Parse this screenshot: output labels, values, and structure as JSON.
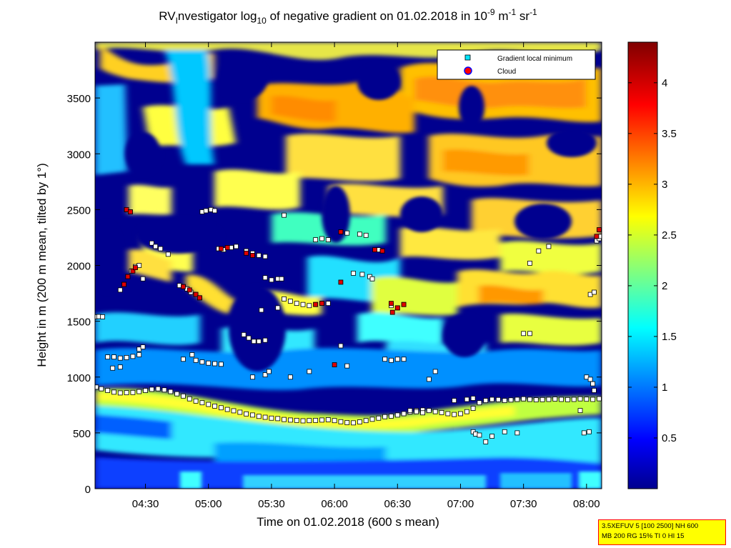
{
  "chart_data": {
    "type": "heatmap",
    "title": {
      "prefix": "RV",
      "prefix_sub": "I",
      "part1": "nvestigator log",
      "log_sub": "10",
      "part2": " of negative gradient on 01.02.2018 in 10",
      "exp1": "-9",
      "part3": " m",
      "exp2": "-1",
      "part4": " sr",
      "exp3": "-1"
    },
    "xlabel": "Time on 01.02.2018 (600 s mean)",
    "ylabel": "Height in m (200 m mean, tilted by 1°)",
    "x_range_hours": [
      4.1,
      8.12
    ],
    "x_ticks": [
      {
        "label": "04:30",
        "value": 4.5
      },
      {
        "label": "05:00",
        "value": 5.0
      },
      {
        "label": "05:30",
        "value": 5.5
      },
      {
        "label": "06:00",
        "value": 6.0
      },
      {
        "label": "06:30",
        "value": 6.5
      },
      {
        "label": "07:00",
        "value": 7.0
      },
      {
        "label": "07:30",
        "value": 7.5
      },
      {
        "label": "08:00",
        "value": 8.0
      }
    ],
    "y_range": [
      0,
      4000
    ],
    "y_ticks": [
      {
        "label": "0",
        "value": 0
      },
      {
        "label": "500",
        "value": 500
      },
      {
        "label": "1000",
        "value": 1000
      },
      {
        "label": "1500",
        "value": 1500
      },
      {
        "label": "2000",
        "value": 2000
      },
      {
        "label": "2500",
        "value": 2500
      },
      {
        "label": "3000",
        "value": 3000
      },
      {
        "label": "3500",
        "value": 3500
      }
    ],
    "colorbar": {
      "range": [
        0,
        4.4
      ],
      "ticks": [
        {
          "label": "0.5",
          "value": 0.5
        },
        {
          "label": "1",
          "value": 1
        },
        {
          "label": "1.5",
          "value": 1.5
        },
        {
          "label": "2",
          "value": 2
        },
        {
          "label": "2.5",
          "value": 2.5
        },
        {
          "label": "3",
          "value": 3
        },
        {
          "label": "3.5",
          "value": 3.5
        },
        {
          "label": "4",
          "value": 4
        }
      ]
    },
    "legend": {
      "position": "top-right",
      "entries": [
        {
          "label": "Gradient local minimum",
          "color": "#00e5ff",
          "marker": "square"
        },
        {
          "label": "Cloud",
          "color": "#ff0000",
          "marker": "circle"
        }
      ]
    },
    "series": [
      {
        "name": "Gradient local minimum",
        "points": [
          [
            4.11,
            910
          ],
          [
            4.15,
            895
          ],
          [
            4.2,
            880
          ],
          [
            4.25,
            865
          ],
          [
            4.3,
            858
          ],
          [
            4.35,
            860
          ],
          [
            4.4,
            862
          ],
          [
            4.45,
            870
          ],
          [
            4.5,
            880
          ],
          [
            4.55,
            890
          ],
          [
            4.6,
            895
          ],
          [
            4.65,
            885
          ],
          [
            4.7,
            870
          ],
          [
            4.75,
            850
          ],
          [
            4.8,
            830
          ],
          [
            4.85,
            805
          ],
          [
            4.9,
            785
          ],
          [
            4.95,
            770
          ],
          [
            5.0,
            755
          ],
          [
            5.05,
            740
          ],
          [
            5.1,
            725
          ],
          [
            5.15,
            710
          ],
          [
            5.2,
            698
          ],
          [
            5.25,
            685
          ],
          [
            5.3,
            670
          ],
          [
            5.35,
            660
          ],
          [
            5.4,
            648
          ],
          [
            5.45,
            640
          ],
          [
            5.5,
            632
          ],
          [
            5.55,
            628
          ],
          [
            5.6,
            620
          ],
          [
            5.65,
            615
          ],
          [
            5.7,
            612
          ],
          [
            5.75,
            608
          ],
          [
            5.8,
            610
          ],
          [
            5.85,
            612
          ],
          [
            5.9,
            615
          ],
          [
            5.95,
            618
          ],
          [
            6.0,
            610
          ],
          [
            6.05,
            600
          ],
          [
            6.1,
            592
          ],
          [
            6.15,
            590
          ],
          [
            6.2,
            598
          ],
          [
            6.25,
            610
          ],
          [
            6.3,
            622
          ],
          [
            6.35,
            632
          ],
          [
            6.4,
            645
          ],
          [
            6.45,
            650
          ],
          [
            6.5,
            660
          ],
          [
            6.55,
            672
          ],
          [
            6.6,
            688
          ],
          [
            6.65,
            700
          ],
          [
            6.7,
            705
          ],
          [
            6.75,
            700
          ],
          [
            6.8,
            690
          ],
          [
            6.85,
            682
          ],
          [
            6.9,
            672
          ],
          [
            6.95,
            665
          ],
          [
            7.0,
            672
          ],
          [
            7.05,
            690
          ],
          [
            7.1,
            720
          ],
          [
            7.15,
            770
          ],
          [
            7.2,
            790
          ],
          [
            7.25,
            800
          ],
          [
            7.3,
            798
          ],
          [
            7.35,
            790
          ],
          [
            7.4,
            795
          ],
          [
            7.45,
            800
          ],
          [
            7.5,
            805
          ],
          [
            7.55,
            800
          ],
          [
            7.6,
            796
          ],
          [
            7.65,
            798
          ],
          [
            7.7,
            800
          ],
          [
            7.75,
            803
          ],
          [
            7.8,
            800
          ],
          [
            7.85,
            798
          ],
          [
            7.9,
            800
          ],
          [
            7.95,
            805
          ],
          [
            8.0,
            802
          ],
          [
            8.05,
            800
          ],
          [
            8.1,
            806
          ],
          [
            4.1,
            1540
          ],
          [
            4.13,
            1542
          ],
          [
            4.16,
            1540
          ],
          [
            4.2,
            1180
          ],
          [
            4.25,
            1180
          ],
          [
            4.3,
            1170
          ],
          [
            4.35,
            1175
          ],
          [
            4.4,
            1185
          ],
          [
            4.45,
            1200
          ],
          [
            4.24,
            1080
          ],
          [
            4.3,
            1090
          ],
          [
            4.45,
            1250
          ],
          [
            4.48,
            1270
          ],
          [
            4.3,
            1780
          ],
          [
            4.33,
            1830
          ],
          [
            4.36,
            1900
          ],
          [
            4.39,
            1950
          ],
          [
            4.42,
            1990
          ],
          [
            4.45,
            2000
          ],
          [
            4.48,
            1880
          ],
          [
            4.55,
            2200
          ],
          [
            4.58,
            2170
          ],
          [
            4.62,
            2150
          ],
          [
            4.68,
            2100
          ],
          [
            4.35,
            2500
          ],
          [
            4.38,
            2480
          ],
          [
            4.77,
            1820
          ],
          [
            4.8,
            1810
          ],
          [
            4.83,
            1790
          ],
          [
            4.86,
            1760
          ],
          [
            4.9,
            1740
          ],
          [
            4.93,
            1710
          ],
          [
            4.8,
            1160
          ],
          [
            4.87,
            1200
          ],
          [
            4.9,
            1150
          ],
          [
            4.95,
            1135
          ],
          [
            5.0,
            1125
          ],
          [
            5.05,
            1120
          ],
          [
            5.1,
            1115
          ],
          [
            4.95,
            2480
          ],
          [
            4.98,
            2490
          ],
          [
            5.02,
            2500
          ],
          [
            5.05,
            2490
          ],
          [
            5.08,
            2150
          ],
          [
            5.12,
            2140
          ],
          [
            5.18,
            2160
          ],
          [
            5.22,
            2170
          ],
          [
            5.3,
            2130
          ],
          [
            5.35,
            2110
          ],
          [
            5.4,
            2090
          ],
          [
            5.45,
            2080
          ],
          [
            5.28,
            1380
          ],
          [
            5.32,
            1350
          ],
          [
            5.36,
            1320
          ],
          [
            5.4,
            1320
          ],
          [
            5.45,
            1330
          ],
          [
            5.35,
            1000
          ],
          [
            5.45,
            1020
          ],
          [
            5.48,
            1050
          ],
          [
            5.45,
            1890
          ],
          [
            5.5,
            1870
          ],
          [
            5.55,
            1880
          ],
          [
            5.58,
            1880
          ],
          [
            5.42,
            1600
          ],
          [
            5.55,
            1620
          ],
          [
            5.6,
            1700
          ],
          [
            5.65,
            1680
          ],
          [
            5.7,
            1660
          ],
          [
            5.75,
            1650
          ],
          [
            5.8,
            1640
          ],
          [
            5.85,
            1650
          ],
          [
            5.9,
            1660
          ],
          [
            5.95,
            1660
          ],
          [
            5.6,
            2450
          ],
          [
            5.85,
            2230
          ],
          [
            5.9,
            2240
          ],
          [
            5.95,
            2230
          ],
          [
            5.65,
            1000
          ],
          [
            5.8,
            1050
          ],
          [
            6.05,
            2300
          ],
          [
            6.1,
            2290
          ],
          [
            6.2,
            2280
          ],
          [
            6.25,
            2270
          ],
          [
            6.15,
            1930
          ],
          [
            6.22,
            1920
          ],
          [
            6.28,
            1900
          ],
          [
            6.3,
            1880
          ],
          [
            6.1,
            1100
          ],
          [
            6.05,
            1280
          ],
          [
            6.35,
            2140
          ],
          [
            6.38,
            2130
          ],
          [
            6.45,
            1640
          ],
          [
            6.5,
            1620
          ],
          [
            6.55,
            1650
          ],
          [
            6.4,
            1160
          ],
          [
            6.45,
            1150
          ],
          [
            6.5,
            1160
          ],
          [
            6.55,
            1160
          ],
          [
            6.6,
            700
          ],
          [
            6.65,
            690
          ],
          [
            6.7,
            680
          ],
          [
            6.75,
            980
          ],
          [
            6.8,
            1050
          ],
          [
            6.95,
            790
          ],
          [
            7.05,
            800
          ],
          [
            7.1,
            810
          ],
          [
            7.1,
            510
          ],
          [
            7.12,
            490
          ],
          [
            7.15,
            480
          ],
          [
            7.2,
            420
          ],
          [
            7.25,
            470
          ],
          [
            7.35,
            510
          ],
          [
            7.45,
            500
          ],
          [
            7.5,
            1390
          ],
          [
            7.55,
            1390
          ],
          [
            7.55,
            2020
          ],
          [
            7.62,
            2130
          ],
          [
            7.7,
            2170
          ],
          [
            7.95,
            700
          ],
          [
            7.98,
            500
          ],
          [
            8.02,
            510
          ],
          [
            8.0,
            1000
          ],
          [
            8.03,
            980
          ],
          [
            8.05,
            940
          ],
          [
            8.06,
            880
          ],
          [
            8.03,
            1740
          ],
          [
            8.06,
            1760
          ],
          [
            8.08,
            2220
          ],
          [
            8.1,
            2240
          ],
          [
            8.11,
            2260
          ]
        ]
      },
      {
        "name": "Cloud",
        "points": [
          [
            4.35,
            2500
          ],
          [
            4.38,
            2480
          ],
          [
            4.33,
            1830
          ],
          [
            4.36,
            1900
          ],
          [
            4.4,
            1950
          ],
          [
            4.42,
            1980
          ],
          [
            4.8,
            1810
          ],
          [
            4.85,
            1780
          ],
          [
            4.9,
            1740
          ],
          [
            4.93,
            1710
          ],
          [
            5.1,
            2150
          ],
          [
            5.15,
            2160
          ],
          [
            5.3,
            2110
          ],
          [
            5.35,
            2090
          ],
          [
            5.85,
            1650
          ],
          [
            5.9,
            1660
          ],
          [
            6.05,
            2300
          ],
          [
            6.05,
            1850
          ],
          [
            6.32,
            2140
          ],
          [
            6.38,
            2130
          ],
          [
            6.45,
            1660
          ],
          [
            6.5,
            1620
          ],
          [
            6.55,
            1650
          ],
          [
            6.0,
            1110
          ],
          [
            8.1,
            2320
          ],
          [
            8.08,
            2260
          ],
          [
            6.46,
            1580
          ]
        ]
      }
    ]
  },
  "footer": {
    "line1": "3.5XEFUV 5 [100 2500] NH 600",
    "line2": "MB 200 RG 15% TI 0 HI 15"
  }
}
